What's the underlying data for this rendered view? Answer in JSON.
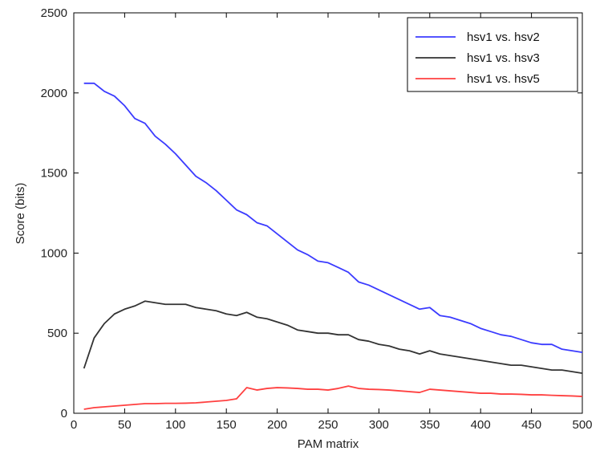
{
  "chart_data": {
    "type": "line",
    "title": "",
    "xlabel": "PAM matrix",
    "ylabel": "Score (bits)",
    "xlim": [
      0,
      500
    ],
    "ylim": [
      0,
      2500
    ],
    "x_ticks": [
      0,
      50,
      100,
      150,
      200,
      250,
      300,
      350,
      400,
      450,
      500
    ],
    "y_ticks": [
      0,
      500,
      1000,
      1500,
      2000,
      2500
    ],
    "grid": false,
    "legend_position": "top-right",
    "series": [
      {
        "name": "hsv1 vs. hsv2",
        "color": "#3b3bff",
        "x": [
          10,
          20,
          30,
          40,
          50,
          60,
          70,
          80,
          90,
          100,
          110,
          120,
          130,
          140,
          150,
          160,
          170,
          180,
          190,
          200,
          210,
          220,
          230,
          240,
          250,
          260,
          270,
          280,
          290,
          300,
          310,
          320,
          330,
          340,
          350,
          360,
          370,
          380,
          390,
          400,
          410,
          420,
          430,
          440,
          450,
          460,
          470,
          480,
          490,
          500
        ],
        "y": [
          2060,
          2060,
          2010,
          1980,
          1920,
          1840,
          1810,
          1730,
          1680,
          1620,
          1550,
          1480,
          1440,
          1390,
          1330,
          1270,
          1240,
          1190,
          1170,
          1120,
          1070,
          1020,
          990,
          950,
          940,
          910,
          880,
          820,
          800,
          770,
          740,
          710,
          680,
          650,
          660,
          610,
          600,
          580,
          560,
          530,
          510,
          490,
          480,
          460,
          440,
          430,
          430,
          400,
          390,
          380
        ]
      },
      {
        "name": "hsv1 vs. hsv3",
        "color": "#333333",
        "x": [
          10,
          20,
          30,
          40,
          50,
          60,
          70,
          80,
          90,
          100,
          110,
          120,
          130,
          140,
          150,
          160,
          170,
          180,
          190,
          200,
          210,
          220,
          230,
          240,
          250,
          260,
          270,
          280,
          290,
          300,
          310,
          320,
          330,
          340,
          350,
          360,
          370,
          380,
          390,
          400,
          410,
          420,
          430,
          440,
          450,
          460,
          470,
          480,
          490,
          500
        ],
        "y": [
          280,
          470,
          560,
          620,
          650,
          670,
          700,
          690,
          680,
          680,
          680,
          660,
          650,
          640,
          620,
          610,
          630,
          600,
          590,
          570,
          550,
          520,
          510,
          500,
          500,
          490,
          490,
          460,
          450,
          430,
          420,
          400,
          390,
          370,
          390,
          370,
          360,
          350,
          340,
          330,
          320,
          310,
          300,
          300,
          290,
          280,
          270,
          270,
          260,
          250
        ]
      },
      {
        "name": "hsv1 vs. hsv5",
        "color": "#ff4040",
        "x": [
          10,
          20,
          30,
          40,
          50,
          60,
          70,
          80,
          90,
          100,
          110,
          120,
          130,
          140,
          150,
          160,
          170,
          180,
          190,
          200,
          210,
          220,
          230,
          240,
          250,
          260,
          270,
          280,
          290,
          300,
          310,
          320,
          330,
          340,
          350,
          360,
          370,
          380,
          390,
          400,
          410,
          420,
          430,
          440,
          450,
          460,
          470,
          480,
          490,
          500
        ],
        "y": [
          25,
          35,
          40,
          45,
          50,
          55,
          60,
          60,
          62,
          62,
          63,
          65,
          70,
          75,
          80,
          90,
          160,
          145,
          155,
          160,
          158,
          155,
          150,
          150,
          145,
          155,
          170,
          155,
          150,
          148,
          145,
          140,
          135,
          130,
          150,
          145,
          140,
          135,
          130,
          125,
          125,
          120,
          120,
          118,
          115,
          115,
          112,
          110,
          108,
          105
        ]
      }
    ]
  }
}
